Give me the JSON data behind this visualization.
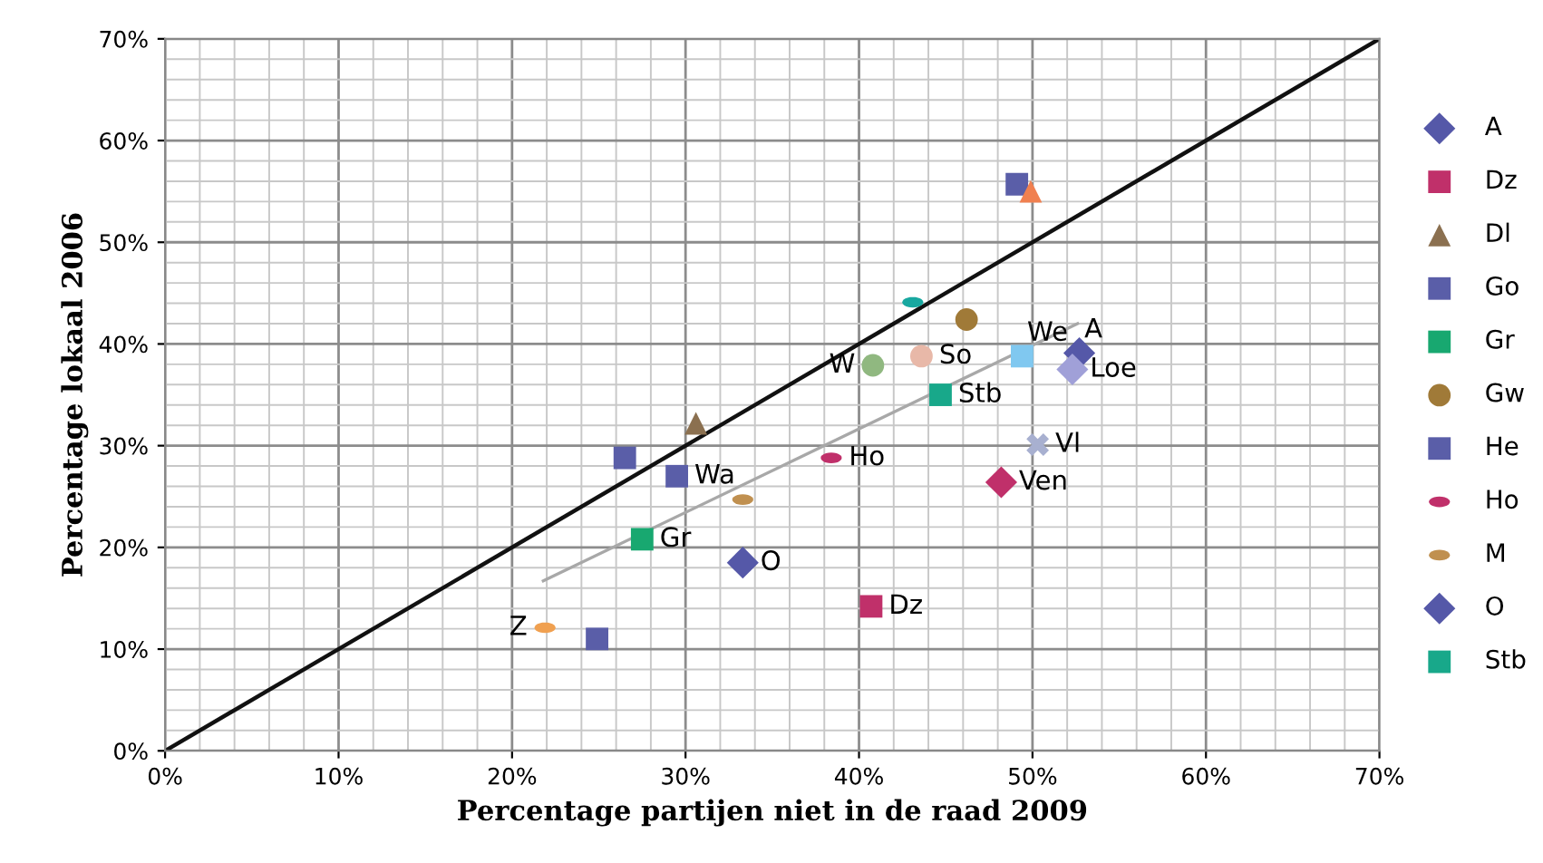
{
  "chart_data": {
    "type": "scatter",
    "xlabel": "Percentage partijen niet in de raad 2009",
    "ylabel": "Percentage lokaal 2006",
    "xlim": [
      0,
      70
    ],
    "ylim": [
      0,
      70
    ],
    "xticks": [
      {
        "value": 0,
        "label": "0%"
      },
      {
        "value": 10,
        "label": "10%"
      },
      {
        "value": 20,
        "label": "20%"
      },
      {
        "value": 30,
        "label": "30%"
      },
      {
        "value": 40,
        "label": "40%"
      },
      {
        "value": 50,
        "label": "50%"
      },
      {
        "value": 60,
        "label": "60%"
      },
      {
        "value": 70,
        "label": "70%"
      }
    ],
    "yticks": [
      {
        "value": 0,
        "label": "0%"
      },
      {
        "value": 10,
        "label": "10%"
      },
      {
        "value": 20,
        "label": "20%"
      },
      {
        "value": 30,
        "label": "30%"
      },
      {
        "value": 40,
        "label": "40%"
      },
      {
        "value": 50,
        "label": "50%"
      },
      {
        "value": 60,
        "label": "60%"
      },
      {
        "value": 70,
        "label": "70%"
      }
    ],
    "grid": true,
    "legend": "right",
    "series": [
      {
        "type": "line",
        "color": "#111111",
        "marker": "none",
        "x": [
          0,
          70
        ],
        "values": [
          0,
          70
        ]
      },
      {
        "type": "line",
        "color": "#a8a8a8",
        "marker": "none",
        "x": [
          21.8,
          52.6
        ],
        "values": [
          16.7,
          42.0
        ]
      },
      {
        "name": "A",
        "color": "#5558a8",
        "marker": "diamond",
        "x": [
          52.7
        ],
        "values": [
          39.1
        ]
      },
      {
        "name": "Dz",
        "color": "#c0306a",
        "marker": "square",
        "x": [
          40.7
        ],
        "values": [
          14.2
        ]
      },
      {
        "name": "Dl",
        "color": "#8b7050",
        "marker": "triangle",
        "x": [
          30.6
        ],
        "values": [
          32.2
        ]
      },
      {
        "name": "Go",
        "color": "#5a5ea8",
        "marker": "square",
        "x": [
          49.1
        ],
        "values": [
          55.7
        ]
      },
      {
        "name": "Gr",
        "color": "#18a870",
        "marker": "square",
        "x": [
          27.5
        ],
        "values": [
          20.8
        ]
      },
      {
        "name": "Gw",
        "color": "#a07a38",
        "marker": "circle",
        "x": [
          46.2
        ],
        "values": [
          42.4
        ]
      },
      {
        "name": "He",
        "color": "#5a5ea8",
        "marker": "square",
        "x": [
          26.5
        ],
        "values": [
          28.8
        ]
      },
      {
        "name": "Ho",
        "color": "#c0306a",
        "x": [
          38.4
        ],
        "values": [
          28.8
        ]
      },
      {
        "name": "M",
        "color": "#c09050",
        "x": [
          33.3
        ],
        "values": [
          24.7
        ]
      },
      {
        "name": "O",
        "color": "#5558a8",
        "marker": "diamond",
        "x": [
          33.3
        ],
        "values": [
          18.5
        ]
      },
      {
        "name": "Stb",
        "color": "#18a88a",
        "marker": "square",
        "x": [
          44.7
        ],
        "values": [
          35.0
        ]
      },
      {
        "color": "#f08050",
        "marker": "triangle",
        "x": [
          49.9
        ],
        "values": [
          55.0
        ]
      },
      {
        "color": "#18a8a0",
        "x": [
          43.1
        ],
        "values": [
          44.1
        ]
      },
      {
        "color": "#a0a0d8",
        "marker": "diamond",
        "x": [
          52.3
        ],
        "values": [
          37.5
        ]
      },
      {
        "color": "#80c8f0",
        "marker": "square",
        "x": [
          49.4
        ],
        "values": [
          38.8
        ]
      },
      {
        "color": "#e8b8a8",
        "marker": "circle",
        "x": [
          43.6
        ],
        "values": [
          38.8
        ]
      },
      {
        "color": "#90b880",
        "marker": "circle",
        "x": [
          40.8
        ],
        "values": [
          37.9
        ]
      },
      {
        "color": "#a8b0d0",
        "marker": "cross",
        "x": [
          50.3
        ],
        "values": [
          30.1
        ]
      },
      {
        "color": "#c0306a",
        "marker": "diamond",
        "x": [
          48.2
        ],
        "values": [
          26.4
        ]
      },
      {
        "color": "#5a5ea8",
        "marker": "square",
        "x": [
          29.5
        ],
        "values": [
          27.0
        ]
      },
      {
        "color": "#f0a050",
        "x": [
          21.9
        ],
        "values": [
          12.1
        ]
      },
      {
        "color": "#5a5ea8",
        "marker": "square",
        "x": [
          24.9
        ],
        "values": [
          11.0
        ]
      }
    ],
    "annotations": [
      {
        "text": "A",
        "x": 52.7,
        "y": 39.1
      },
      {
        "text": "Loe",
        "x": 52.3,
        "y": 37.5
      },
      {
        "text": "We",
        "x": 49.4,
        "y": 38.8
      },
      {
        "text": "So",
        "x": 43.6,
        "y": 38.8
      },
      {
        "text": "W",
        "x": 40.8,
        "y": 37.9
      },
      {
        "text": "Stb",
        "x": 44.7,
        "y": 35.0
      },
      {
        "text": "Vl",
        "x": 50.3,
        "y": 30.1
      },
      {
        "text": "Ven",
        "x": 48.2,
        "y": 26.4
      },
      {
        "text": "Ho",
        "x": 38.4,
        "y": 28.8
      },
      {
        "text": "Wa",
        "x": 29.5,
        "y": 27.0
      },
      {
        "text": "Gr",
        "x": 27.5,
        "y": 20.8
      },
      {
        "text": "O",
        "x": 33.3,
        "y": 18.5
      },
      {
        "text": "Dz",
        "x": 40.7,
        "y": 14.2
      },
      {
        "text": "Z",
        "x": 21.9,
        "y": 12.1
      }
    ]
  }
}
